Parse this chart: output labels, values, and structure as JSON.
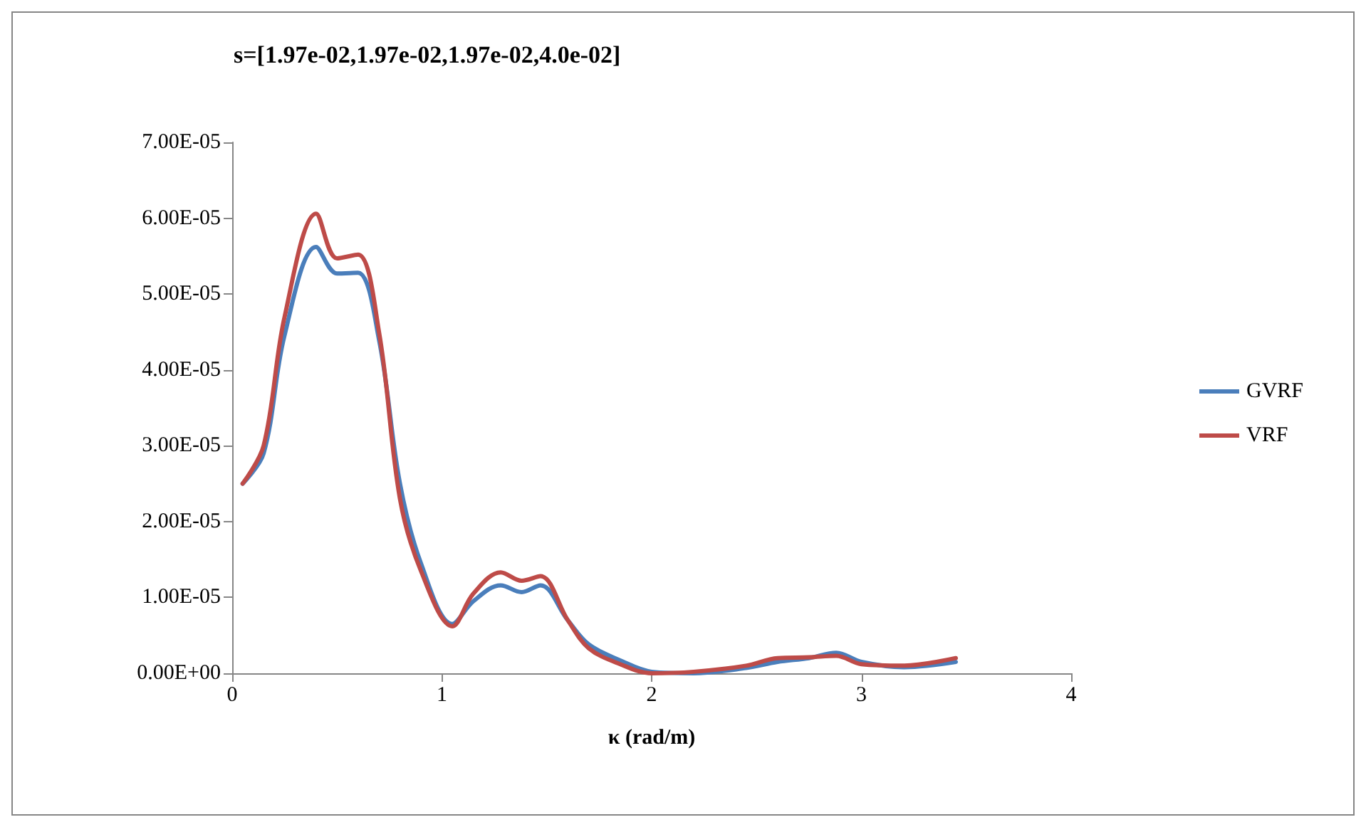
{
  "chart_data": {
    "type": "line",
    "title": "s=[1.97e-02,1.97e-02,1.97e-02,4.0e-02]",
    "xlabel": "κ (rad/m)",
    "x": [
      0.05,
      0.15,
      0.25,
      0.4,
      0.5,
      0.6,
      0.7,
      0.8,
      0.9,
      1.05,
      1.15,
      1.28,
      1.38,
      1.47,
      1.6,
      1.7,
      1.85,
      2.0,
      2.2,
      2.45,
      2.6,
      2.75,
      2.88,
      3.0,
      3.2,
      3.45
    ],
    "series": [
      {
        "name": "GVRF",
        "color": "#4a7ebb",
        "values": [
          2.5e-05,
          2.9e-05,
          4.46e-05,
          5.62e-05,
          5.27e-05,
          5.28e-05,
          4.4e-05,
          2.5e-05,
          1.45e-05,
          6.5e-06,
          9.5e-06,
          1.16e-05,
          1.07e-05,
          1.16e-05,
          7e-06,
          3.8e-06,
          1.7e-06,
          2e-07,
          0.0,
          7e-07,
          1.5e-06,
          2e-06,
          2.7e-06,
          1.5e-06,
          8e-07,
          1.5e-06
        ]
      },
      {
        "name": "VRF",
        "color": "#be4b48",
        "values": [
          2.5e-05,
          3e-05,
          4.7e-05,
          6.06e-05,
          5.47e-05,
          5.52e-05,
          4.5e-05,
          2.3e-05,
          1.35e-05,
          6.2e-06,
          1.05e-05,
          1.33e-05,
          1.22e-05,
          1.28e-05,
          7e-06,
          3.3e-06,
          1.2e-06,
          0.0,
          2e-07,
          1e-06,
          2e-06,
          2.1e-06,
          2.3e-06,
          1.2e-06,
          1e-06,
          2e-06
        ]
      }
    ],
    "xlim": [
      0,
      4
    ],
    "xticks": [
      0,
      1,
      2,
      3,
      4
    ],
    "ylim": [
      0,
      7e-05
    ],
    "yticks": [
      {
        "value": 0,
        "label": "0.00E+00"
      },
      {
        "value": 1e-05,
        "label": "1.00E-05"
      },
      {
        "value": 2e-05,
        "label": "2.00E-05"
      },
      {
        "value": 3e-05,
        "label": "3.00E-05"
      },
      {
        "value": 4e-05,
        "label": "4.00E-05"
      },
      {
        "value": 5e-05,
        "label": "5.00E-05"
      },
      {
        "value": 6e-05,
        "label": "6.00E-05"
      },
      {
        "value": 7e-05,
        "label": "7.00E-05"
      }
    ],
    "grid": false,
    "legend": "right",
    "marker": "none",
    "line_style": "solid"
  }
}
